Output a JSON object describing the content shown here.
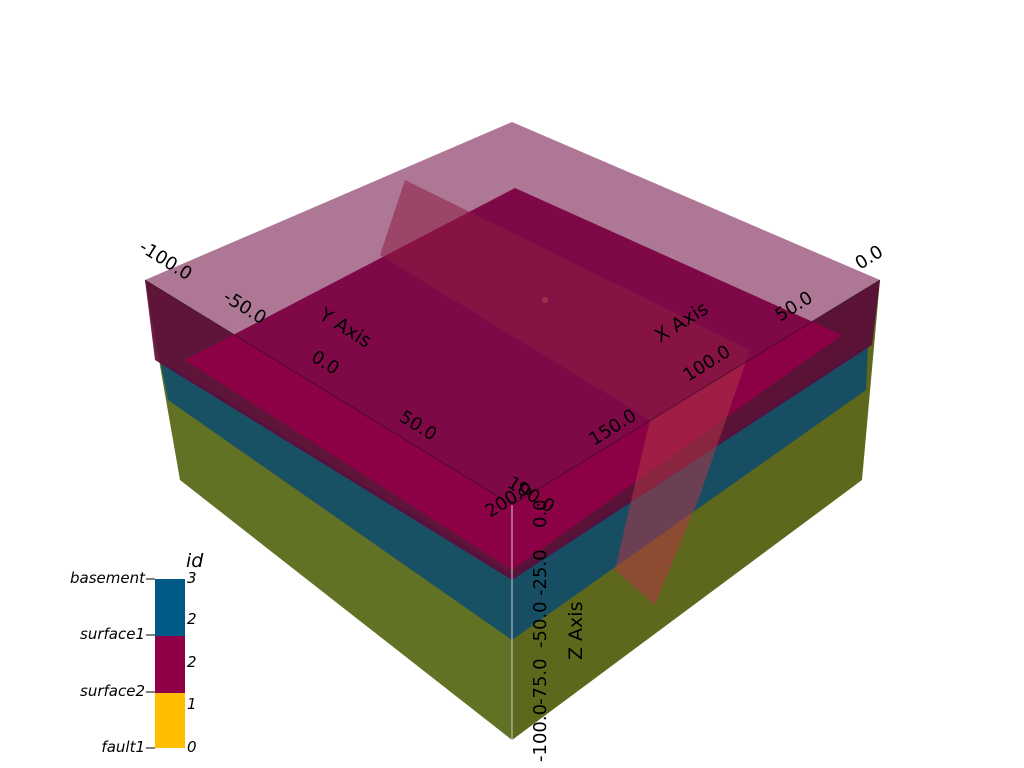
{
  "axes": {
    "x_title": "X Axis",
    "y_title": "Y Axis",
    "z_title": "Z Axis",
    "x_ticks": [
      "0.0",
      "50.0",
      "100.0",
      "150.0",
      "200.0"
    ],
    "y_ticks": [
      "-100.0",
      "-50.0",
      "0.0",
      "50.0",
      "100.0"
    ],
    "z_ticks": [
      "0.0",
      "-25.0",
      "-50.0",
      "-75.0",
      "-100.0"
    ]
  },
  "legend": {
    "title": "id",
    "items": [
      {
        "name": "basement",
        "color": "#005a87"
      },
      {
        "name": "surface1",
        "color": "#8f0047"
      },
      {
        "name": "surface2",
        "color": "#8f0047"
      },
      {
        "name": "fault1",
        "color": "#ffbe00"
      }
    ],
    "values": [
      "3",
      "2",
      "2",
      "1",
      "0"
    ]
  },
  "colors": {
    "top_surface": "#70073f",
    "surface2": "#8f0047",
    "surface1_layer": "#0e4a6a",
    "basement": "#56631b",
    "fault": "#a32a3b"
  }
}
